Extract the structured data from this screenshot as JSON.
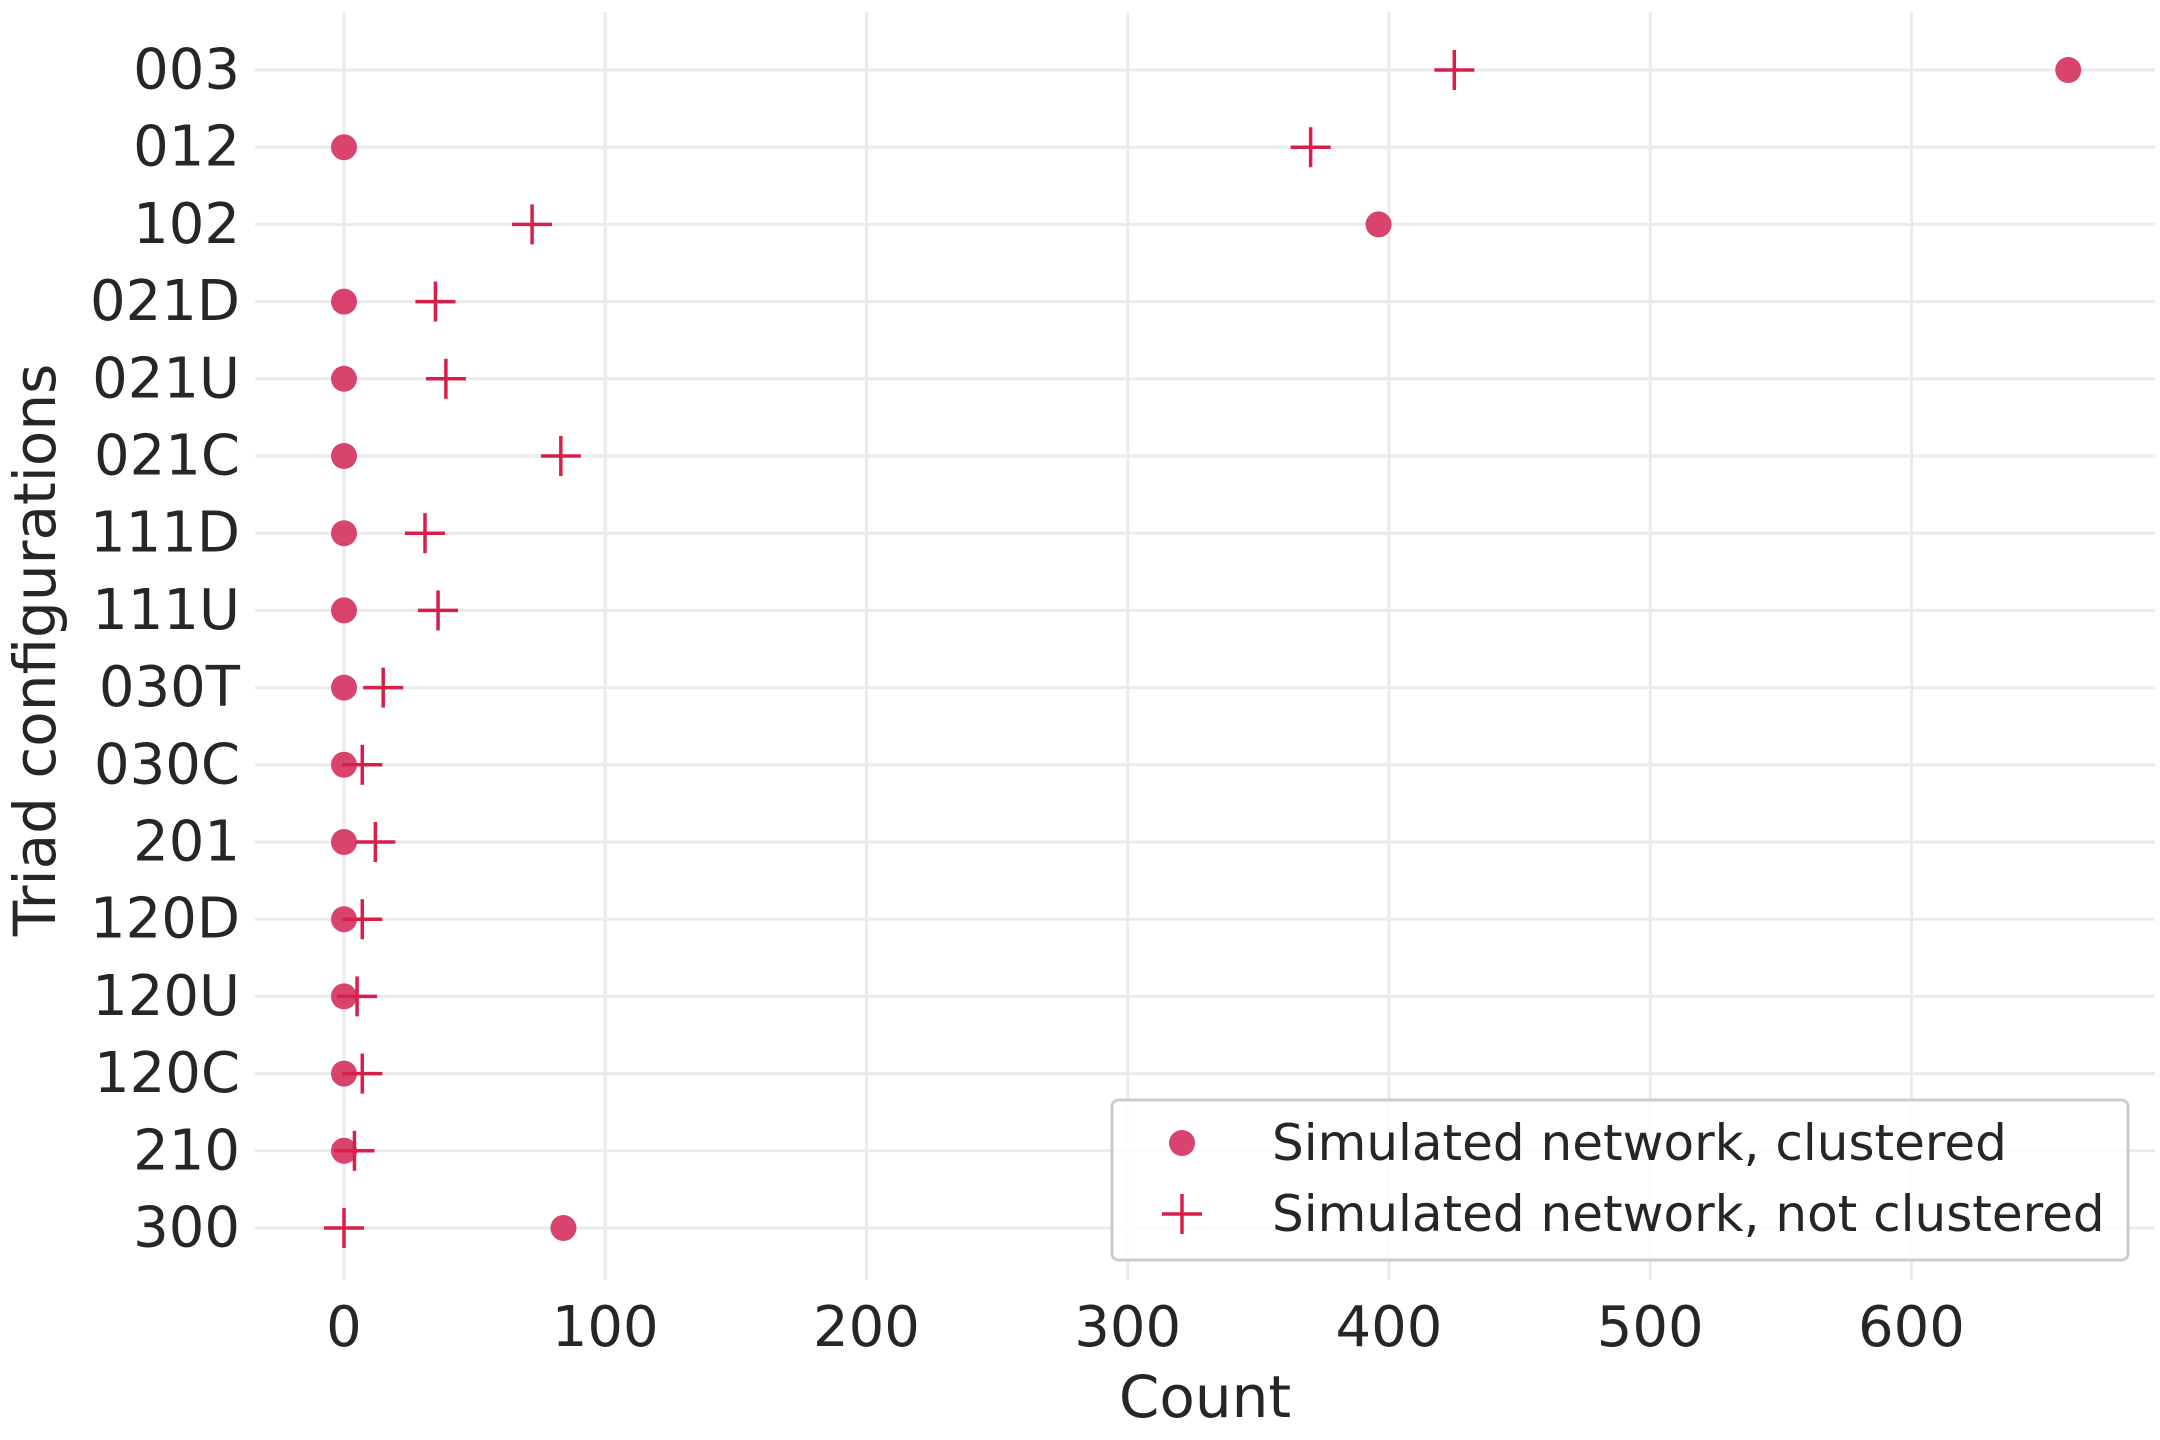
{
  "chart_data": {
    "type": "scatter",
    "title": "",
    "xlabel": "Count",
    "ylabel": "Triad configurations",
    "xlim": [
      -35,
      690
    ],
    "x_ticks": [
      0,
      100,
      200,
      300,
      400,
      500,
      600
    ],
    "x_tick_labels": [
      "0",
      "100",
      "200",
      "300",
      "400",
      "500",
      "600"
    ],
    "grid": true,
    "legend_position": "bottom-right",
    "categories": [
      "003",
      "012",
      "102",
      "021D",
      "021U",
      "021C",
      "111D",
      "111U",
      "030T",
      "030C",
      "201",
      "120D",
      "120U",
      "120C",
      "210",
      "300"
    ],
    "series": [
      {
        "name": "Simulated network, clustered",
        "marker": "circle",
        "color": "#d63a66",
        "values": [
          660,
          0,
          396,
          0,
          0,
          0,
          0,
          0,
          0,
          0,
          0,
          0,
          0,
          0,
          0,
          84
        ]
      },
      {
        "name": "Simulated network, not clustered",
        "marker": "plus",
        "color": "#d81e4a",
        "values": [
          425,
          370,
          72,
          35,
          39,
          83,
          31,
          36,
          15,
          7,
          12,
          7,
          5,
          7,
          4,
          0
        ]
      }
    ]
  }
}
